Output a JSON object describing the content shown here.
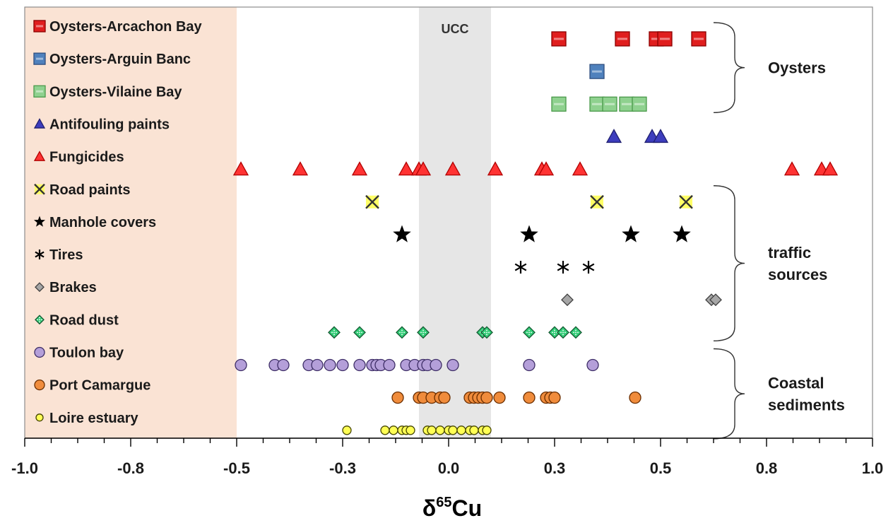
{
  "chart_data": {
    "type": "scatter",
    "title": "",
    "xlabel_main": "δ",
    "xlabel_sup": "65",
    "xlabel_tail": "Cu",
    "ylabel": "",
    "xlim": [
      -1.0,
      1.0
    ],
    "x_ticks": [
      -1.0,
      -0.8,
      -0.5,
      -0.3,
      0.0,
      0.3,
      0.5,
      0.8,
      1.0
    ],
    "x_tick_labels": [
      "-1.0",
      "-0.8",
      "-0.5",
      "-0.3",
      "0.0",
      "0.3",
      "0.5",
      "0.8",
      "1.0"
    ],
    "grid": false,
    "legend_placement": "left, inside plot",
    "ucc_band": {
      "label": "UCC",
      "from": -0.07,
      "to": 0.1,
      "color": "#e6e6e6"
    },
    "left_shade": {
      "from": -1.0,
      "to": -0.5,
      "color": "#fae3d4"
    },
    "series": [
      {
        "name": "Oysters-Arcachon Bay",
        "marker": "square",
        "fill": "#e01e1e",
        "stroke": "#8b0000",
        "x": [
          0.26,
          0.41,
          0.49,
          0.51,
          0.59
        ]
      },
      {
        "name": "Oysters-Arguin Banc",
        "marker": "square",
        "fill": "#4f81bd",
        "stroke": "#2f4f7f",
        "x": [
          0.35
        ]
      },
      {
        "name": "Oysters-Vilaine Bay",
        "marker": "square",
        "fill": "#8fd18f",
        "stroke": "#4a9a4a",
        "x": [
          0.26,
          0.35,
          0.38,
          0.42,
          0.45
        ]
      },
      {
        "name": "Antifouling paints",
        "marker": "triangle",
        "fill": "#3d3dbd",
        "stroke": "#1f1f6f",
        "x": [
          0.39,
          0.48,
          0.5
        ]
      },
      {
        "name": "Fungicides",
        "marker": "triangle",
        "fill": "#ff3333",
        "stroke": "#b00000",
        "x": [
          -0.49,
          -0.35,
          -0.21,
          -0.1,
          -0.07,
          -0.06,
          0.01,
          0.11,
          0.22,
          0.23,
          0.31,
          0.81,
          0.88,
          0.9
        ]
      },
      {
        "name": "Road paints",
        "marker": "x",
        "fill": "#ffff66",
        "stroke": "#333333",
        "x": [
          -0.18,
          0.35,
          0.56
        ]
      },
      {
        "name": "Manhole covers",
        "marker": "star",
        "fill": "#000000",
        "stroke": "#000000",
        "x": [
          -0.11,
          0.19,
          0.43,
          0.55
        ]
      },
      {
        "name": "Tires",
        "marker": "asterisk",
        "fill": "#000000",
        "stroke": "#000000",
        "x": [
          0.17,
          0.27,
          0.33
        ]
      },
      {
        "name": "Brakes",
        "marker": "diamond",
        "fill": "#a6a6a6",
        "stroke": "#404040",
        "x": [
          0.28,
          0.62,
          0.63
        ]
      },
      {
        "name": "Road dust",
        "marker": "diamond-dotted",
        "fill": "#33cc77",
        "stroke": "#145a32",
        "x": [
          -0.27,
          -0.21,
          -0.11,
          -0.06,
          0.08,
          0.09,
          0.19,
          0.25,
          0.27,
          0.3
        ]
      },
      {
        "name": "Toulon bay",
        "marker": "circle",
        "fill": "#b49fd9",
        "stroke": "#3d2d66",
        "x": [
          -0.49,
          -0.41,
          -0.39,
          -0.33,
          -0.31,
          -0.28,
          -0.25,
          -0.21,
          -0.18,
          -0.17,
          -0.16,
          -0.14,
          -0.1,
          -0.08,
          -0.06,
          -0.05,
          -0.03,
          0.01,
          0.19,
          0.34
        ]
      },
      {
        "name": "Port Camargue",
        "marker": "circle",
        "fill": "#f08c3c",
        "stroke": "#6b2e00",
        "x": [
          -0.12,
          -0.07,
          -0.06,
          -0.04,
          -0.02,
          -0.01,
          0.05,
          0.06,
          0.07,
          0.08,
          0.09,
          0.12,
          0.19,
          0.23,
          0.24,
          0.25,
          0.44
        ]
      },
      {
        "name": "Loire estuary",
        "marker": "circle-small",
        "fill": "#ffff55",
        "stroke": "#444400",
        "x": [
          -0.24,
          -0.15,
          -0.13,
          -0.11,
          -0.1,
          -0.09,
          -0.05,
          -0.04,
          -0.02,
          0.0,
          0.01,
          0.03,
          0.05,
          0.06,
          0.08,
          0.09
        ]
      }
    ],
    "groups": [
      {
        "label_lines": [
          "Oysters"
        ],
        "first_series": 0,
        "last_series": 2
      },
      {
        "label_lines": [
          "traffic",
          "sources"
        ],
        "first_series": 5,
        "last_series": 9
      },
      {
        "label_lines": [
          "Coastal",
          "sediments"
        ],
        "first_series": 10,
        "last_series": 12
      }
    ]
  }
}
